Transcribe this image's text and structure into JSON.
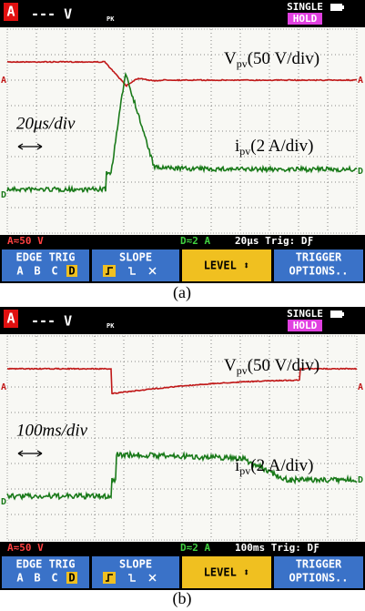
{
  "panels": [
    {
      "header": {
        "channel": "A",
        "reading": "--- V",
        "reading_icon": "PK",
        "single": "SINGLE",
        "hold": "HOLD"
      },
      "annotations": {
        "voltage": "V",
        "voltage_sub": "pv",
        "voltage_scale": "(50 V/div)",
        "time_scale": "20μs/div",
        "current": "i",
        "current_sub": "pv",
        "current_scale": "(2 A/div)"
      },
      "markers": {
        "a": "A",
        "d": "D"
      },
      "status": {
        "a": "A≂50 V",
        "d": "D≂2 A",
        "time": "20μs Trig: DƑ"
      },
      "menu": {
        "edge_trig": "EDGE TRIG",
        "inputs": [
          "A",
          "B",
          "C",
          "D"
        ],
        "slope": "SLOPE",
        "level": "LEVEL ⬍",
        "trigger": "TRIGGER",
        "options": "OPTIONS.."
      }
    },
    {
      "header": {
        "channel": "A",
        "reading": "--- V",
        "reading_icon": "PK",
        "single": "SINGLE",
        "hold": "HOLD"
      },
      "annotations": {
        "voltage": "V",
        "voltage_sub": "pv",
        "voltage_scale": "(50 V/div)",
        "time_scale": "100ms/div",
        "current": "i",
        "current_sub": "pv",
        "current_scale": "(2 A/div)"
      },
      "markers": {
        "a": "A",
        "d": "D"
      },
      "status": {
        "a": "A≂50 V",
        "d": "D≂2 A",
        "time": "100ms Trig: DƑ"
      },
      "menu": {
        "edge_trig": "EDGE TRIG",
        "inputs": [
          "A",
          "B",
          "C",
          "D"
        ],
        "slope": "SLOPE",
        "level": "LEVEL ⬍",
        "trigger": "TRIGGER",
        "options": "OPTIONS.."
      }
    }
  ],
  "captions": [
    "(a)",
    "(b)"
  ]
}
